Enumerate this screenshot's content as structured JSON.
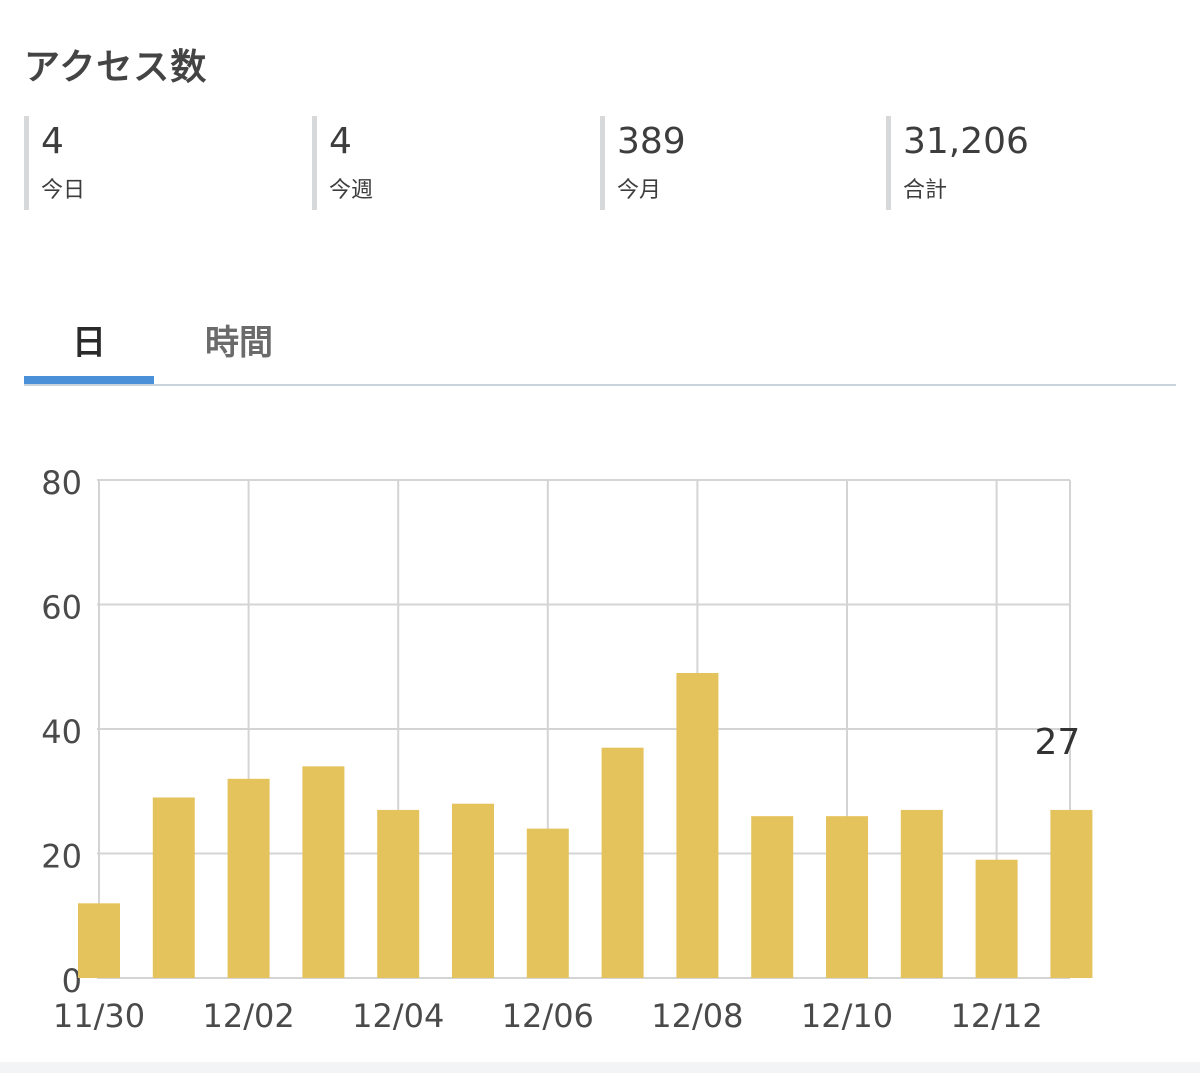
{
  "header": {
    "title": "アクセス数"
  },
  "stats": [
    {
      "value": "4",
      "label": "今日"
    },
    {
      "value": "4",
      "label": "今週"
    },
    {
      "value": "389",
      "label": "今月"
    },
    {
      "value": "31,206",
      "label": "合計"
    }
  ],
  "tabs": [
    {
      "label": "日",
      "active": true
    },
    {
      "label": "時間",
      "active": false
    }
  ],
  "colors": {
    "bar": "#e5c35c",
    "accent": "#4a90d9",
    "grid": "#d4d4d4"
  },
  "chart_data": {
    "type": "bar",
    "categories": [
      "11/30",
      "12/01",
      "12/02",
      "12/03",
      "12/04",
      "12/05",
      "12/06",
      "12/07",
      "12/08",
      "12/09",
      "12/10",
      "12/11",
      "12/12",
      "12/13"
    ],
    "values": [
      12,
      29,
      32,
      34,
      27,
      28,
      24,
      37,
      49,
      26,
      26,
      27,
      19,
      27
    ],
    "x_tick_labels": [
      "11/30",
      "12/02",
      "12/04",
      "12/06",
      "12/08",
      "12/10",
      "12/12"
    ],
    "y_ticks": [
      0,
      20,
      40,
      60,
      80
    ],
    "ylim": [
      0,
      80
    ],
    "highlight_label": "27",
    "grid": true
  }
}
